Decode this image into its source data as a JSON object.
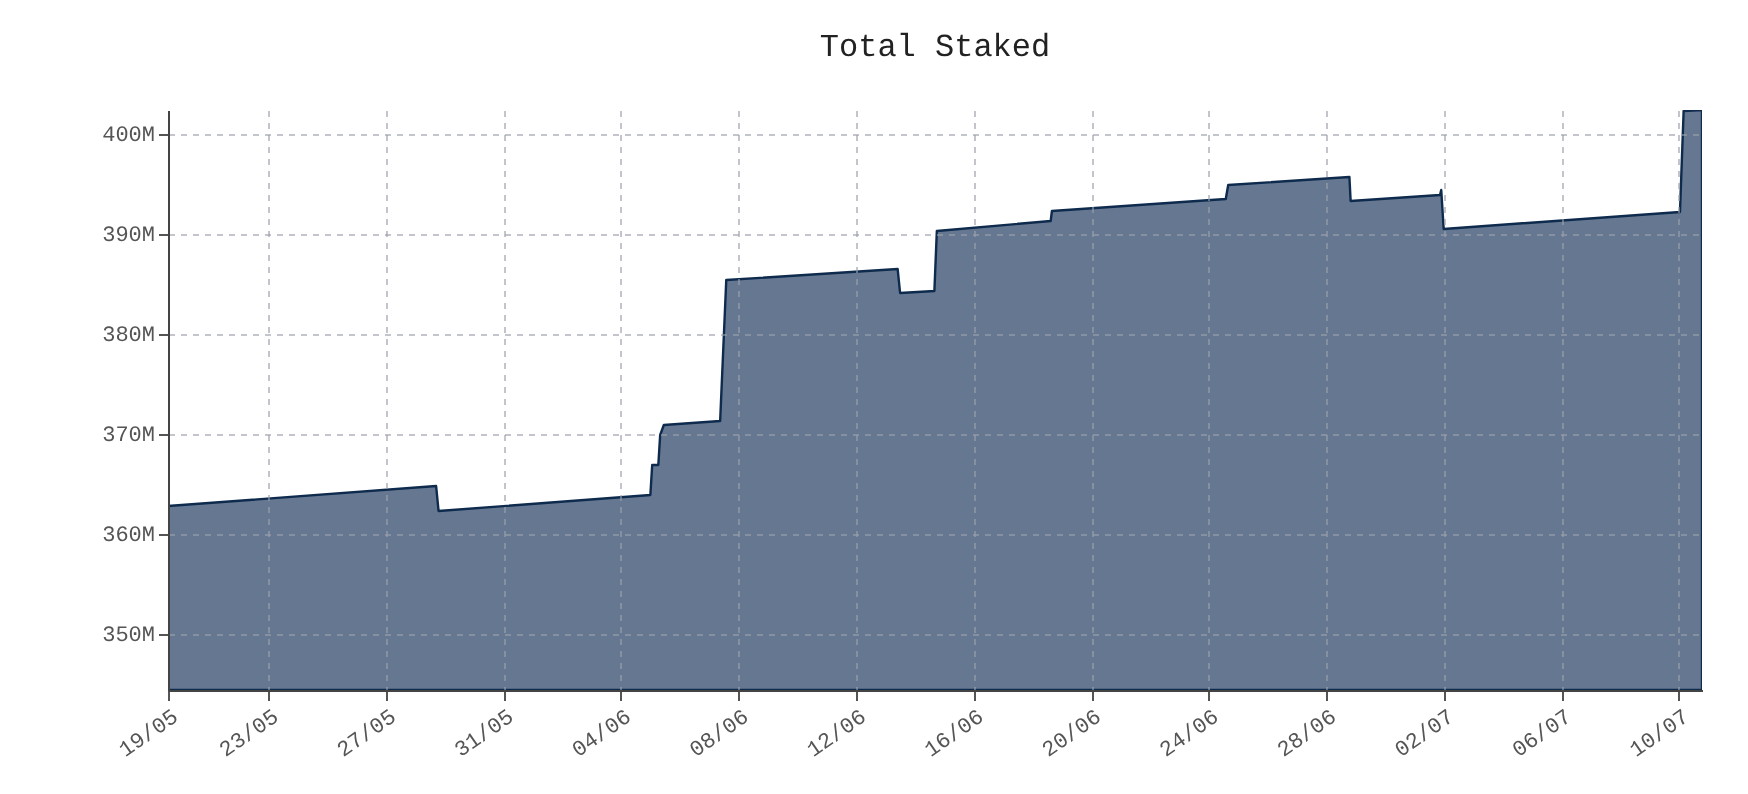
{
  "chart_data": {
    "type": "area",
    "title": "Total Staked",
    "x": [
      "--05-19T14:00",
      "--05-28T17:00",
      "--05-28T19:00",
      "--06-05T00:00",
      "--06-05T01:30",
      "--06-05T06:30",
      "--06-05T08:00",
      "--06-05T11:00",
      "--06-07T09:00",
      "--06-07T14:00",
      "--06-13T10:00",
      "--06-13T12:00",
      "--06-14T16:00",
      "--06-14T18:00",
      "--06-18T15:00",
      "--06-18T16:00",
      "--06-24T14:00",
      "--06-24T16:00",
      "--06-28T19:00",
      "--06-28T20:00",
      "--07-01T21:00",
      "--07-01T22:00",
      "--07-02T00:00",
      "--07-10T01:00",
      "--07-10T04:00",
      "--07-10T19:00"
    ],
    "series": [
      {
        "color": "#667891",
        "values": [
          362.8,
          364.8,
          362.3,
          363.9,
          366.9,
          366.9,
          369.9,
          370.9,
          371.3,
          385.4,
          386.5,
          384.1,
          384.3,
          390.3,
          391.3,
          392.3,
          393.5,
          394.9,
          395.7,
          393.3,
          393.9,
          394.4,
          390.5,
          392.2,
          402.3,
          402.4
        ]
      }
    ],
    "xlim": [
      "--05-19T14:00",
      "--07-10T19:00"
    ],
    "xticks": [
      {
        "value": "--05-19T14:00",
        "label": "19/05"
      },
      {
        "value": "--05-23",
        "label": "23/05"
      },
      {
        "value": "--05-27",
        "label": "27/05"
      },
      {
        "value": "--05-31",
        "label": "31/05"
      },
      {
        "value": "--06-04",
        "label": "04/06"
      },
      {
        "value": "--06-08",
        "label": "08/06"
      },
      {
        "value": "--06-12",
        "label": "12/06"
      },
      {
        "value": "--06-16",
        "label": "16/06"
      },
      {
        "value": "--06-20",
        "label": "20/06"
      },
      {
        "value": "--06-24",
        "label": "24/06"
      },
      {
        "value": "--06-28",
        "label": "28/06"
      },
      {
        "value": "--07-02",
        "label": "02/07"
      },
      {
        "value": "--07-06",
        "label": "06/07"
      },
      {
        "value": "--07-10",
        "label": "10/07"
      }
    ],
    "ylim": [
      344.4,
      402.4
    ],
    "yticks": [
      {
        "value": 350,
        "label": "350M"
      },
      {
        "value": 360,
        "label": "360M"
      },
      {
        "value": 370,
        "label": "370M"
      },
      {
        "value": 380,
        "label": "380M"
      },
      {
        "value": 390,
        "label": "390M"
      },
      {
        "value": 400,
        "label": "400M"
      }
    ],
    "grid": true
  }
}
